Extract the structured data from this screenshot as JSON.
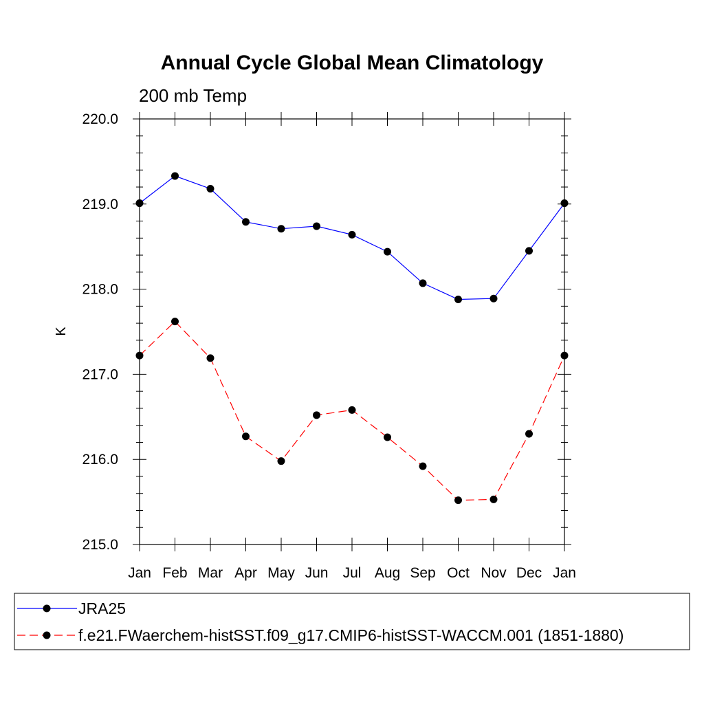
{
  "chart_data": {
    "type": "line",
    "title": "Annual Cycle Global Mean Climatology",
    "subtitle": "200 mb Temp",
    "xlabel": "",
    "ylabel": "K",
    "categories": [
      "Jan",
      "Feb",
      "Mar",
      "Apr",
      "May",
      "Jun",
      "Jul",
      "Aug",
      "Sep",
      "Oct",
      "Nov",
      "Dec",
      "Jan"
    ],
    "ylim": [
      215.0,
      220.0
    ],
    "yticks": [
      "215.0",
      "216.0",
      "217.0",
      "218.0",
      "219.0",
      "220.0"
    ],
    "grid": false,
    "series": [
      {
        "name": "JRA25",
        "color": "#0000ff",
        "dash": "solid",
        "values": [
          219.01,
          219.33,
          219.18,
          218.79,
          218.71,
          218.74,
          218.64,
          218.44,
          218.07,
          217.88,
          217.89,
          218.45,
          219.01
        ]
      },
      {
        "name": "f.e21.FWaerchem-histSST.f09_g17.CMIP6-histSST-WACCM.001 (1851-1880)",
        "color": "#ff0000",
        "dash": "dashed",
        "values": [
          217.22,
          217.62,
          217.19,
          216.27,
          215.98,
          216.52,
          216.58,
          216.26,
          215.92,
          215.52,
          215.53,
          216.3,
          217.22
        ]
      }
    ],
    "legend": "bottom"
  }
}
